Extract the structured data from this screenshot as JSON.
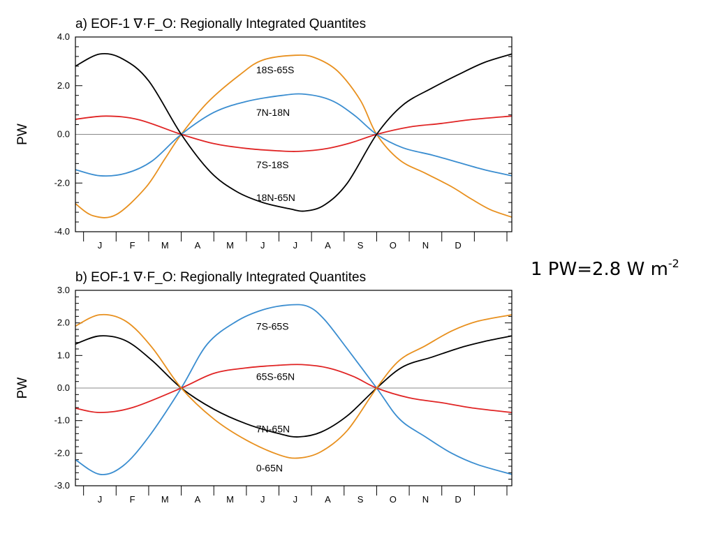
{
  "note": {
    "text": "1 PW=2.8 W m",
    "sup": "-2"
  },
  "chart_data": [
    {
      "type": "line",
      "title": "a) EOF-1 ∇·F_O: Regionally Integrated Quantites",
      "xlabel": "",
      "ylabel": "PW",
      "ylim": [
        -4.0,
        4.0
      ],
      "yticks": [
        "4.0",
        "2.0",
        "0.0",
        "-2.0",
        "-4.0"
      ],
      "yticks_values": [
        4.0,
        2.0,
        0.0,
        -2.0,
        -4.0
      ],
      "xlim": [
        0.25,
        13.65
      ],
      "categories": [
        "J",
        "F",
        "M",
        "A",
        "M",
        "J",
        "J",
        "A",
        "S",
        "O",
        "N",
        "D"
      ],
      "grid": false,
      "zero_line": true,
      "series": [
        {
          "name": "18S-65S",
          "color": "#e8901e",
          "x": [
            0.25,
            0.8,
            1.5,
            2.4,
            3,
            3.5,
            4.3,
            5.3,
            6,
            7,
            7.6,
            8.3,
            9,
            9.5,
            10.2,
            11,
            11.8,
            12.4,
            13,
            13.65
          ],
          "y": [
            -2.85,
            -3.35,
            -3.3,
            -2.2,
            -1.0,
            0.0,
            1.3,
            2.45,
            3.05,
            3.25,
            3.15,
            2.6,
            1.4,
            0.0,
            -1.05,
            -1.6,
            -2.15,
            -2.65,
            -3.1,
            -3.4
          ]
        },
        {
          "name": "7N-18N",
          "color": "#3a8dd0",
          "x": [
            0.25,
            1,
            1.8,
            2.6,
            3.5,
            4.5,
            5.5,
            6.6,
            7.3,
            8.1,
            8.8,
            9.5,
            10.3,
            11.2,
            12,
            12.8,
            13.65
          ],
          "y": [
            -1.45,
            -1.7,
            -1.6,
            -1.1,
            0.0,
            0.9,
            1.35,
            1.6,
            1.65,
            1.4,
            0.8,
            0.0,
            -0.55,
            -0.85,
            -1.15,
            -1.45,
            -1.7
          ]
        },
        {
          "name": "7S-18S",
          "color": "#e02424",
          "x": [
            0.25,
            1.2,
            2.2,
            3.5,
            4.5,
            5.5,
            6.5,
            7.1,
            7.9,
            8.7,
            9.5,
            10.5,
            11.5,
            12.5,
            13.65
          ],
          "y": [
            0.62,
            0.75,
            0.6,
            0.0,
            -0.38,
            -0.58,
            -0.68,
            -0.7,
            -0.6,
            -0.35,
            0.0,
            0.3,
            0.45,
            0.62,
            0.75
          ]
        },
        {
          "name": "18N-65N",
          "color": "#000000",
          "x": [
            0.25,
            1,
            1.7,
            2.5,
            3.5,
            4.4,
            5.2,
            6,
            6.8,
            7.3,
            7.9,
            8.6,
            9.5,
            10.3,
            11.2,
            12,
            12.8,
            13.65
          ],
          "y": [
            2.8,
            3.3,
            3.1,
            2.2,
            0.0,
            -1.55,
            -2.35,
            -2.8,
            -3.05,
            -3.15,
            -2.9,
            -2.0,
            0.0,
            1.2,
            1.9,
            2.45,
            2.95,
            3.3
          ]
        }
      ],
      "annotations": [
        {
          "text": "18S-65S",
          "x": 5.8,
          "y": 2.65
        },
        {
          "text": "7N-18N",
          "x": 5.8,
          "y": 0.9
        },
        {
          "text": "7S-18S",
          "x": 5.8,
          "y": -1.25
        },
        {
          "text": "18N-65N",
          "x": 5.8,
          "y": -2.6
        }
      ]
    },
    {
      "type": "line",
      "title": "b) EOF-1 ∇·F_O: Regionally Integrated Quantites",
      "xlabel": "",
      "ylabel": "PW",
      "ylim": [
        -3.0,
        3.0
      ],
      "yticks": [
        "3.0",
        "2.0",
        "1.0",
        "0.0",
        "-1.0",
        "-2.0",
        "-3.0"
      ],
      "yticks_values": [
        3.0,
        2.0,
        1.0,
        0.0,
        -1.0,
        -2.0,
        -3.0
      ],
      "xlim": [
        0.25,
        13.65
      ],
      "categories": [
        "J",
        "F",
        "M",
        "A",
        "M",
        "J",
        "J",
        "A",
        "S",
        "O",
        "N",
        "D"
      ],
      "grid": false,
      "zero_line": true,
      "series": [
        {
          "name": "7S-65S",
          "color": "#3a8dd0",
          "x": [
            0.25,
            1,
            1.7,
            2.5,
            3.5,
            4.3,
            5.2,
            6,
            6.8,
            7.4,
            7.9,
            8.6,
            9.5,
            10.2,
            11,
            11.8,
            12.6,
            13.65
          ],
          "y": [
            -2.2,
            -2.65,
            -2.4,
            -1.5,
            0.0,
            1.35,
            2.05,
            2.4,
            2.55,
            2.5,
            2.1,
            1.2,
            0.0,
            -0.95,
            -1.5,
            -2.0,
            -2.35,
            -2.65
          ]
        },
        {
          "name": "65S-65N",
          "color": "#e02424",
          "x": [
            0.25,
            1,
            2,
            3.5,
            4.5,
            5.5,
            6.5,
            7.2,
            8,
            8.8,
            9.5,
            10.5,
            11.5,
            12.5,
            13.65
          ],
          "y": [
            -0.62,
            -0.75,
            -0.6,
            0.0,
            0.45,
            0.62,
            0.7,
            0.72,
            0.62,
            0.35,
            0.0,
            -0.3,
            -0.45,
            -0.62,
            -0.75
          ]
        },
        {
          "name": "7N-65N",
          "color": "#000000",
          "x": [
            0.25,
            1,
            1.8,
            2.6,
            3.5,
            4.5,
            5.5,
            6.5,
            7.1,
            7.8,
            8.6,
            9.5,
            10.3,
            11.2,
            12.1,
            12.9,
            13.65
          ],
          "y": [
            1.35,
            1.6,
            1.45,
            0.85,
            0.0,
            -0.65,
            -1.1,
            -1.4,
            -1.5,
            -1.35,
            -0.85,
            0.0,
            0.65,
            0.95,
            1.25,
            1.45,
            1.6
          ]
        },
        {
          "name": "0-65N",
          "color": "#e8901e",
          "x": [
            0.25,
            1,
            1.8,
            2.6,
            3.5,
            4.5,
            5.5,
            6.5,
            7.1,
            7.8,
            8.6,
            9.5,
            10.2,
            11,
            11.8,
            12.6,
            13.65
          ],
          "y": [
            1.9,
            2.25,
            2.05,
            1.25,
            0.0,
            -0.95,
            -1.6,
            -2.05,
            -2.15,
            -1.95,
            -1.3,
            0.0,
            0.85,
            1.3,
            1.75,
            2.05,
            2.25
          ]
        }
      ],
      "annotations": [
        {
          "text": "7S-65S",
          "x": 5.8,
          "y": 1.9
        },
        {
          "text": "65S-65N",
          "x": 5.8,
          "y": 0.35
        },
        {
          "text": "7N-65N",
          "x": 5.8,
          "y": -1.25
        },
        {
          "text": "0-65N",
          "x": 5.8,
          "y": -2.45
        }
      ]
    }
  ]
}
